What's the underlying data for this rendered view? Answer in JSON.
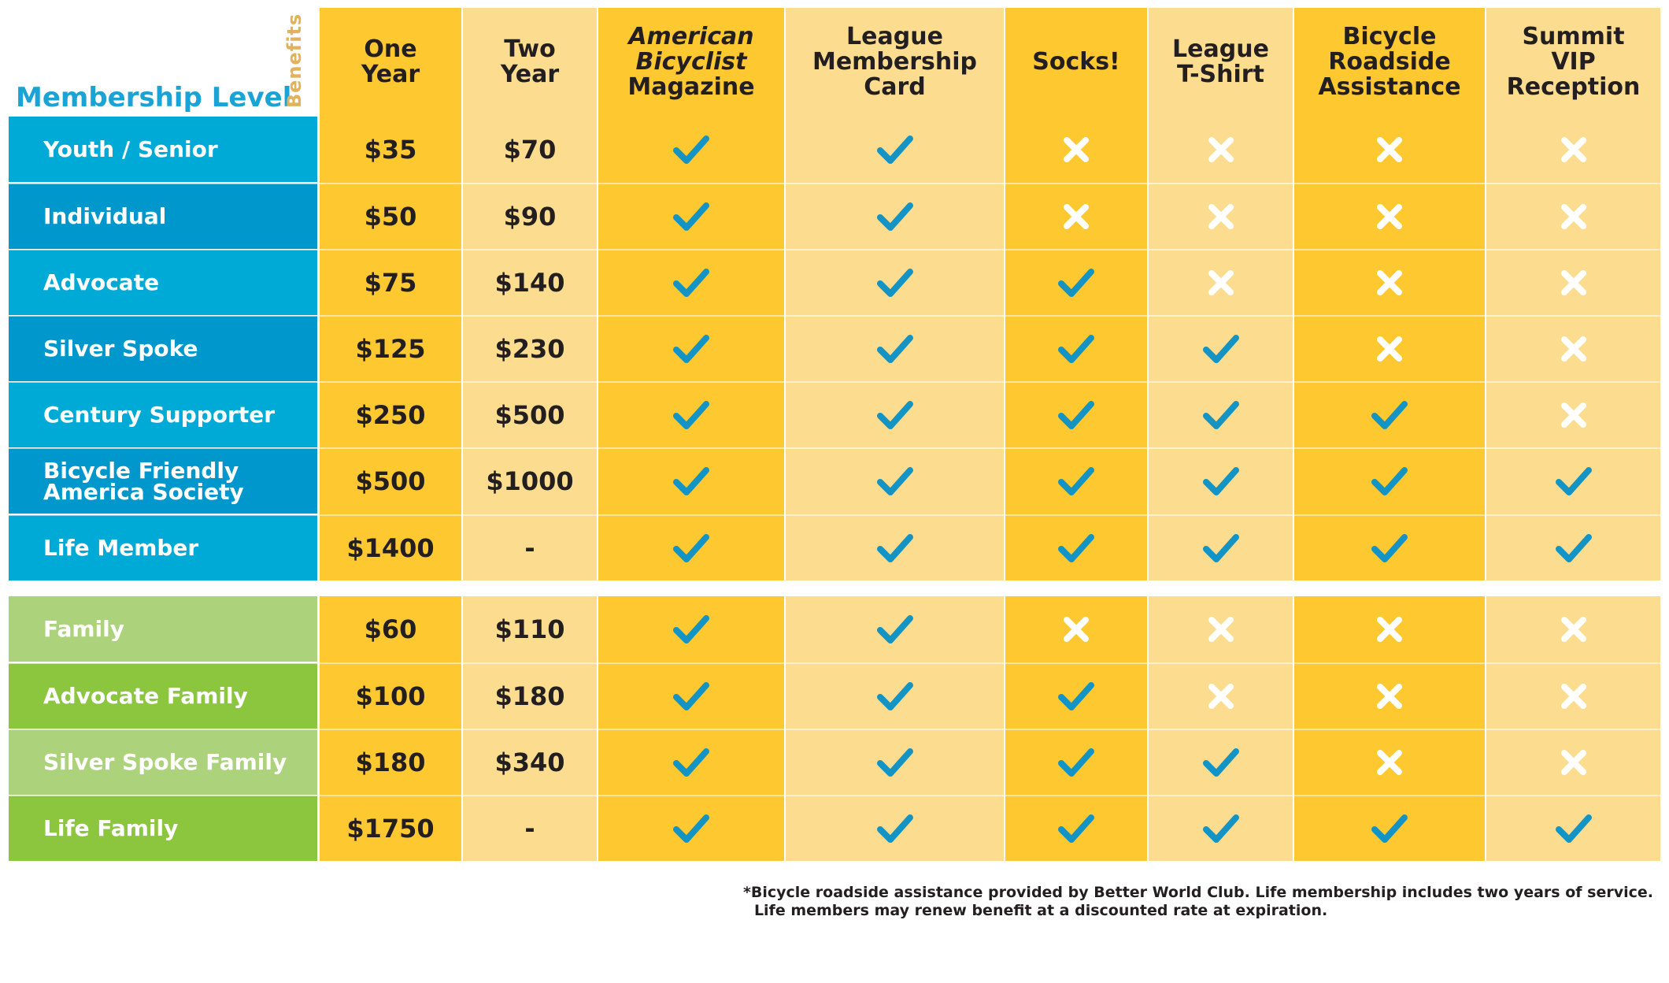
{
  "header": {
    "membership_level_label": "Membership Level",
    "benefits_label": "Benefits"
  },
  "columns": [
    {
      "label": "One\nYear",
      "italic": false,
      "color": "#fdc830"
    },
    {
      "label": "Two\nYear",
      "italic": false,
      "color": "#fcdd90"
    },
    {
      "label_italic": "American\nBicyclist",
      "label": "Magazine",
      "italic": true,
      "color": "#fdc830"
    },
    {
      "label": "League\nMembership\nCard",
      "italic": false,
      "color": "#fcdd90"
    },
    {
      "label": "Socks!",
      "italic": false,
      "color": "#fdc830"
    },
    {
      "label": "League\nT-Shirt",
      "italic": false,
      "color": "#fcdd90"
    },
    {
      "label": "Bicycle\nRoadside\nAssistance",
      "italic": false,
      "color": "#fdc830"
    },
    {
      "label": "Summit\nVIP\nReception",
      "italic": false,
      "color": "#fcdd90"
    }
  ],
  "individual_rows": [
    {
      "level": "Youth / Senior",
      "one_year": "$35",
      "two_year": "$70",
      "benefits": [
        true,
        true,
        false,
        false,
        false,
        false
      ],
      "color": "#00aad7"
    },
    {
      "level": "Individual",
      "one_year": "$50",
      "two_year": "$90",
      "benefits": [
        true,
        true,
        false,
        false,
        false,
        false
      ],
      "color": "#0098cc"
    },
    {
      "level": "Advocate",
      "one_year": "$75",
      "two_year": "$140",
      "benefits": [
        true,
        true,
        true,
        false,
        false,
        false
      ],
      "color": "#00aad7"
    },
    {
      "level": "Silver Spoke",
      "one_year": "$125",
      "two_year": "$230",
      "benefits": [
        true,
        true,
        true,
        true,
        false,
        false
      ],
      "color": "#0098cc"
    },
    {
      "level": "Century Supporter",
      "one_year": "$250",
      "two_year": "$500",
      "benefits": [
        true,
        true,
        true,
        true,
        true,
        false
      ],
      "color": "#00aad7"
    },
    {
      "level": "Bicycle Friendly\nAmerica Society",
      "one_year": "$500",
      "two_year": "$1000",
      "benefits": [
        true,
        true,
        true,
        true,
        true,
        true
      ],
      "color": "#0098cc"
    },
    {
      "level": "Life Member",
      "one_year": "$1400",
      "two_year": "-",
      "benefits": [
        true,
        true,
        true,
        true,
        true,
        true
      ],
      "color": "#00aad7"
    }
  ],
  "family_rows": [
    {
      "level": "Family",
      "one_year": "$60",
      "two_year": "$110",
      "benefits": [
        true,
        true,
        false,
        false,
        false,
        false
      ],
      "color": "#acd37b"
    },
    {
      "level": "Advocate Family",
      "one_year": "$100",
      "two_year": "$180",
      "benefits": [
        true,
        true,
        true,
        false,
        false,
        false
      ],
      "color": "#8cc63f"
    },
    {
      "level": "Silver Spoke Family",
      "one_year": "$180",
      "two_year": "$340",
      "benefits": [
        true,
        true,
        true,
        true,
        false,
        false
      ],
      "color": "#acd37b"
    },
    {
      "level": "Life Family",
      "one_year": "$1750",
      "two_year": "-",
      "benefits": [
        true,
        true,
        true,
        true,
        true,
        true
      ],
      "color": "#8cc63f"
    }
  ],
  "colors": {
    "check": "#1494c4",
    "cross": "#ffffff",
    "title": "#1aa3d4",
    "benefits_label": "#e3b15b"
  },
  "footnote": {
    "line1": "*Bicycle roadside assistance provided by Better World Club. Life membership includes two years of service.",
    "line2": "Life members may renew benefit at a discounted rate at expiration."
  }
}
